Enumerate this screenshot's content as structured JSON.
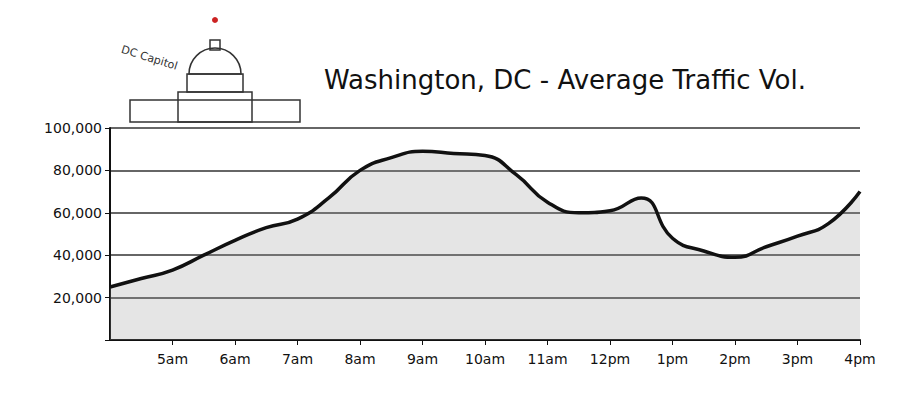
{
  "chart_data": {
    "type": "line",
    "title": "Washington, DC - Average Traffic Vol.",
    "annotation": "DC Capitol",
    "categories": [
      null,
      null,
      "5am",
      null,
      "6am",
      null,
      "7am",
      null,
      "8am",
      null,
      "9am",
      null,
      "10am",
      null,
      "11am",
      null,
      "12pm",
      null,
      "1pm",
      null,
      "2pm",
      null,
      "3pm",
      null,
      "4pm"
    ],
    "values": [
      25000,
      29000,
      33000,
      40000,
      47000,
      53000,
      57000,
      67000,
      80000,
      86000,
      89000,
      88000,
      87000,
      78000,
      65000,
      60000,
      61000,
      67000,
      48000,
      42000,
      39000,
      44000,
      49000,
      55000,
      70000
    ],
    "color": "#111111",
    "ylim": [
      0,
      100000
    ],
    "yticks": [
      {
        "value": 20000,
        "label": "20,000"
      },
      {
        "value": 40000,
        "label": "40,000"
      },
      {
        "value": 60000,
        "label": "60,000"
      },
      {
        "value": 80000,
        "label": "80,000"
      },
      {
        "value": 100000,
        "label": "100,000"
      }
    ],
    "grid": true
  }
}
